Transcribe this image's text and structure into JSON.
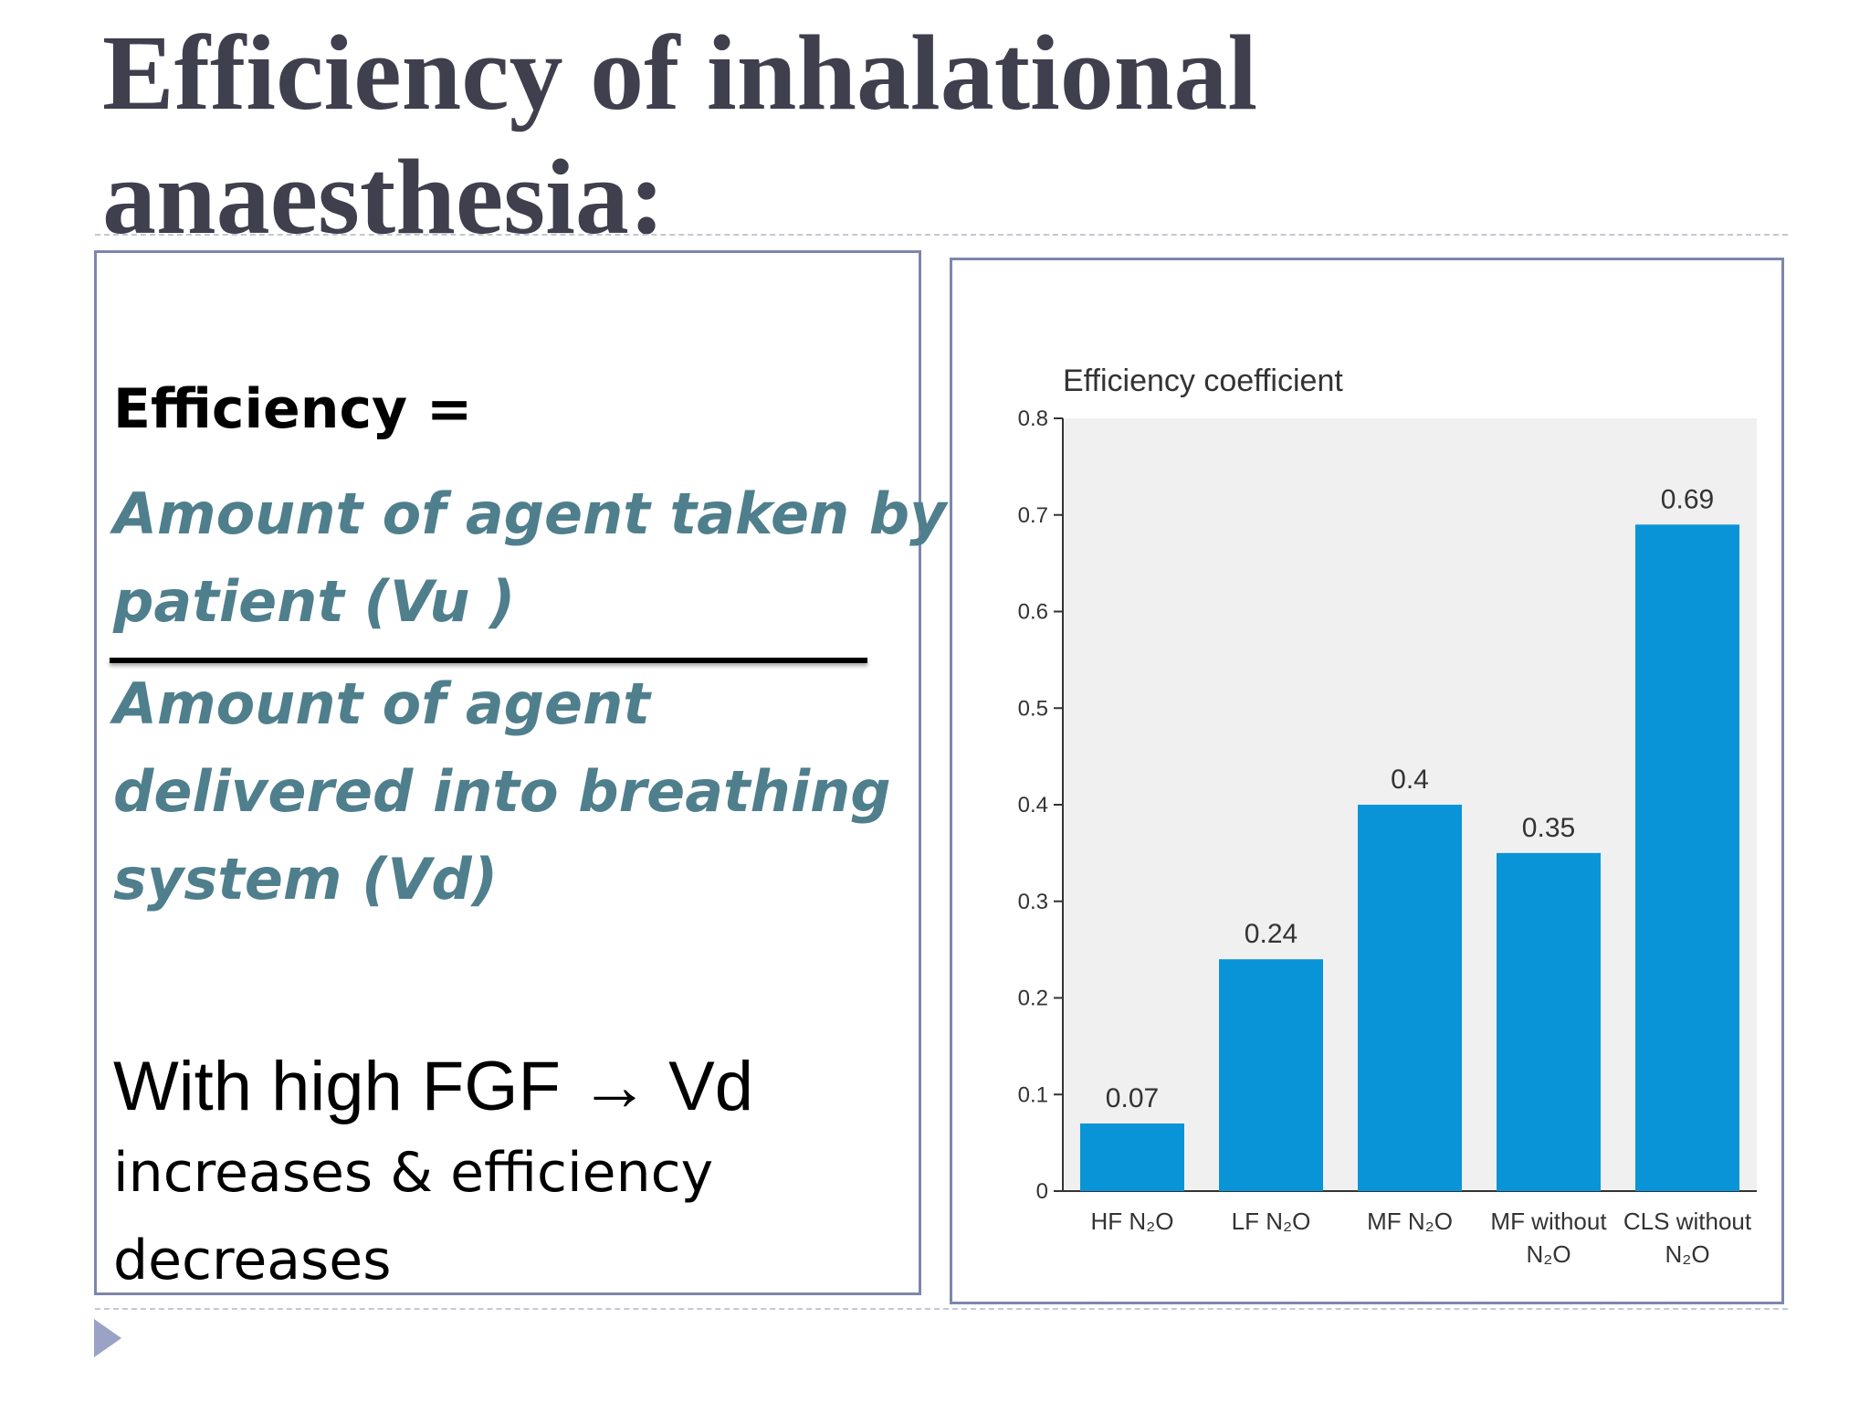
{
  "slide": {
    "title": "Efficiency of inhalational anaesthesia:",
    "equation_label": "Efficiency =",
    "numerator_lines": [
      "Amount of agent taken by",
      "patient  (Vu )"
    ],
    "denominator_lines": [
      "Amount of agent",
      "delivered into breathing",
      "system (Vd)"
    ],
    "note_main": "With high FGF → Vd",
    "note_rest_lines": [
      "increases & efficiency",
      "decreases"
    ]
  },
  "colors": {
    "bar": "#0a94d8",
    "plot_background": "#f0f0f0",
    "title_text": "#3f3f4e",
    "agent_text": "#4f7f8c",
    "box_border": "#7e86ad"
  },
  "chart_data": {
    "type": "bar",
    "ylabel": "Efficiency coefficient",
    "xlabel": "",
    "ylim": [
      0,
      0.8
    ],
    "yticks": [
      0,
      0.1,
      0.2,
      0.3,
      0.4,
      0.5,
      0.6,
      0.7,
      0.8
    ],
    "categories": [
      [
        "HF N₂O"
      ],
      [
        "LF N₂O"
      ],
      [
        "MF N₂O"
      ],
      [
        "MF without",
        "N₂O"
      ],
      [
        "CLS without",
        "N₂O"
      ]
    ],
    "values": [
      0.07,
      0.24,
      0.4,
      0.35,
      0.69
    ],
    "data_labels": [
      "0.07",
      "0.24",
      "0.4",
      "0.35",
      "0.69"
    ],
    "grid": false,
    "legend": "none"
  }
}
